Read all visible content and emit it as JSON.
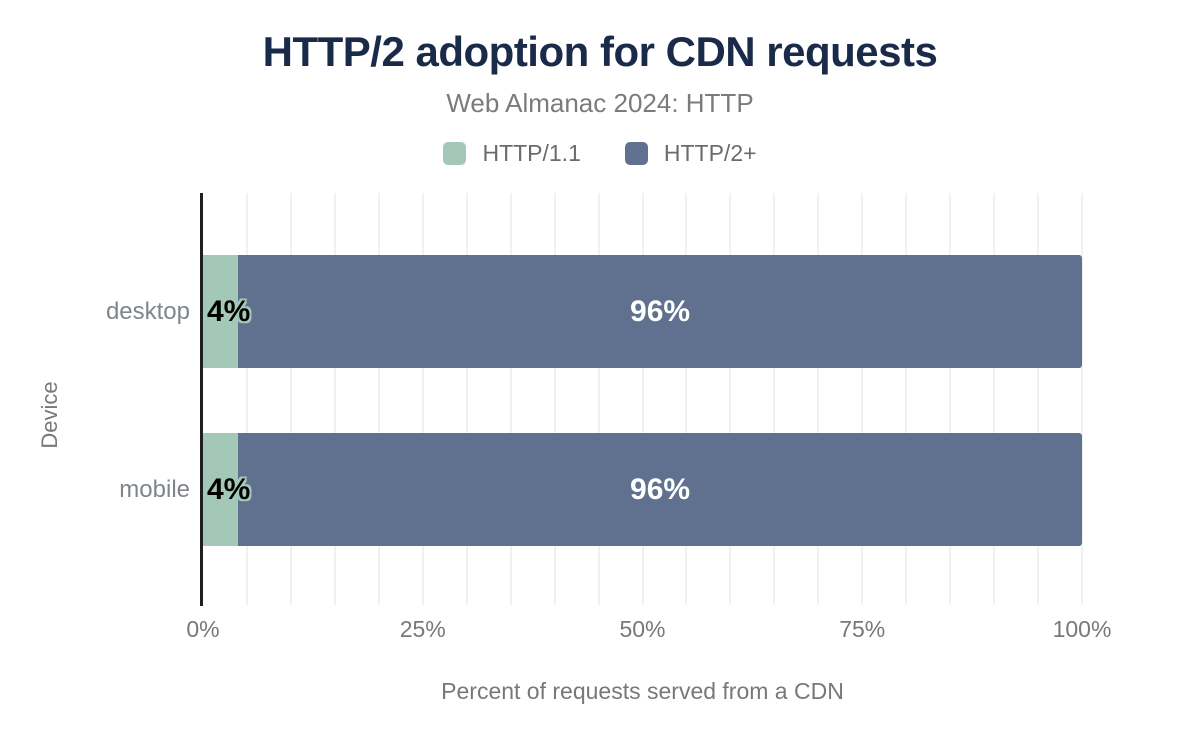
{
  "header": {
    "title": "HTTP/2 adoption for CDN requests",
    "subtitle": "Web Almanac 2024: HTTP"
  },
  "legend": [
    {
      "label": "HTTP/1.1",
      "color": "#a4c8b8"
    },
    {
      "label": "HTTP/2+",
      "color": "#5f718e"
    }
  ],
  "axes": {
    "y_title": "Device",
    "x_title": "Percent of requests served from a CDN",
    "x_ticks": [
      "0%",
      "25%",
      "50%",
      "75%",
      "100%"
    ]
  },
  "colors": {
    "title_navy": "#1a2b4a",
    "http1_green": "#a4c8b8",
    "http2_slate": "#5f718e",
    "gridline": "#f1f1f1",
    "axis_line": "#1f1f1f",
    "muted_text": "#75797c"
  },
  "chart_data": {
    "type": "bar",
    "orientation": "horizontal",
    "stacked": true,
    "title": "HTTP/2 adoption for CDN requests",
    "subtitle": "Web Almanac 2024: HTTP",
    "categories": [
      "desktop",
      "mobile"
    ],
    "series": [
      {
        "name": "HTTP/1.1",
        "color": "#a4c8b8",
        "values": [
          4,
          4
        ]
      },
      {
        "name": "HTTP/2+",
        "color": "#5f718e",
        "values": [
          96,
          96
        ]
      }
    ],
    "value_labels": [
      [
        "4%",
        "96%"
      ],
      [
        "4%",
        "96%"
      ]
    ],
    "xlabel": "Percent of requests served from a CDN",
    "ylabel": "Device",
    "xlim": [
      0,
      100
    ],
    "grid_step_pct": 5,
    "grid": true,
    "legend_position": "top"
  }
}
